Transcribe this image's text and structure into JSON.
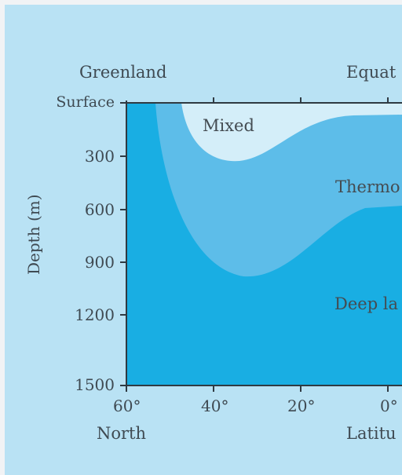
{
  "diagram": {
    "top_labels": {
      "left": "Greenland",
      "right": "Equat"
    },
    "y_axis": {
      "title": "Depth (m)",
      "ticks": [
        "Surface",
        "300",
        "600",
        "900",
        "1200",
        "1500"
      ]
    },
    "x_axis": {
      "ticks": [
        "60°",
        "40°",
        "20°",
        "0°"
      ],
      "bottom_left": "North",
      "bottom_right": "Latitu"
    },
    "regions": {
      "mixed": "Mixed",
      "thermocline": "Thermo",
      "deep": "Deep la"
    },
    "colors": {
      "background": "#b9e2f4",
      "mixed_layer": "#d4eef9",
      "thermocline": "#5dbde9",
      "deep_layer": "#19aee3",
      "axis": "#2f3a42"
    }
  }
}
